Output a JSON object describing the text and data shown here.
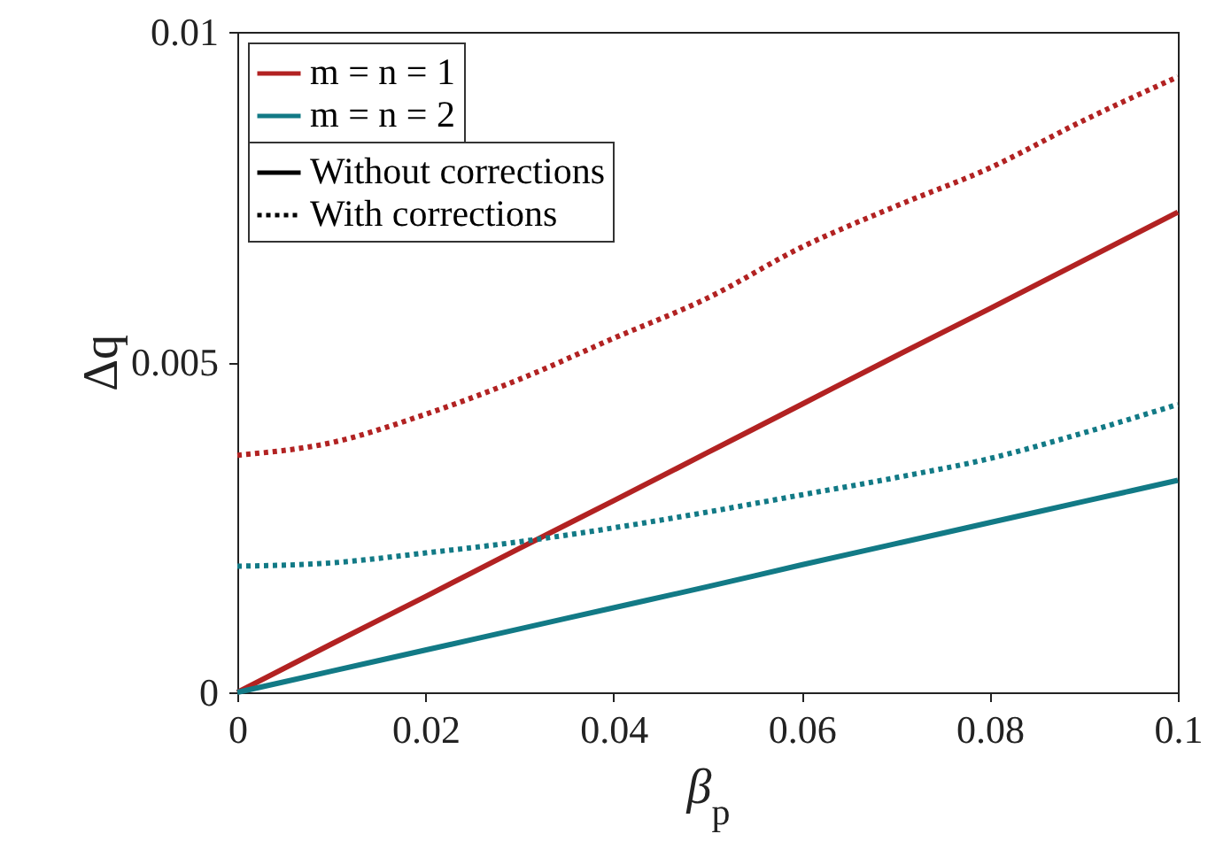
{
  "chart_data": {
    "type": "line",
    "xlabel": "β$_{p}$",
    "ylabel": "Δq",
    "x": [
      0,
      0.01,
      0.02,
      0.03,
      0.04,
      0.05,
      0.06,
      0.07,
      0.08,
      0.09,
      0.1
    ],
    "series": [
      {
        "name": "m = n = 1",
        "color": "#b22222",
        "line_style": "solid",
        "values": [
          0,
          0.00073,
          0.00145,
          0.00218,
          0.0029,
          0.00363,
          0.00436,
          0.00509,
          0.00581,
          0.00654,
          0.00727
        ]
      },
      {
        "color": "#b22222",
        "line_style": "dotted",
        "values": [
          0.00359,
          0.00378,
          0.00421,
          0.00474,
          0.00536,
          0.00597,
          0.00674,
          0.00736,
          0.00794,
          0.00866,
          0.00932
        ]
      },
      {
        "name": "m = n = 2",
        "color": "#127a86",
        "line_style": "solid",
        "values": [
          0,
          0.00032,
          0.00064,
          0.00096,
          0.00128,
          0.0016,
          0.00193,
          0.00225,
          0.00257,
          0.00289,
          0.00321
        ]
      },
      {
        "color": "#127a86",
        "line_style": "dotted",
        "values": [
          0.00191,
          0.00196,
          0.00211,
          0.00228,
          0.00249,
          0.00273,
          0.00299,
          0.00325,
          0.00354,
          0.00393,
          0.00436
        ]
      }
    ],
    "annotations": [
      "Without corrections",
      "With corrections"
    ],
    "xlim": [
      0,
      0.1
    ],
    "xticks": [
      0,
      0.02,
      0.04,
      0.06,
      0.08,
      0.1
    ],
    "ylim": [
      0,
      0.01
    ],
    "yticks": [
      0,
      0.005,
      0.01
    ],
    "legend": "top left",
    "grid": false
  }
}
